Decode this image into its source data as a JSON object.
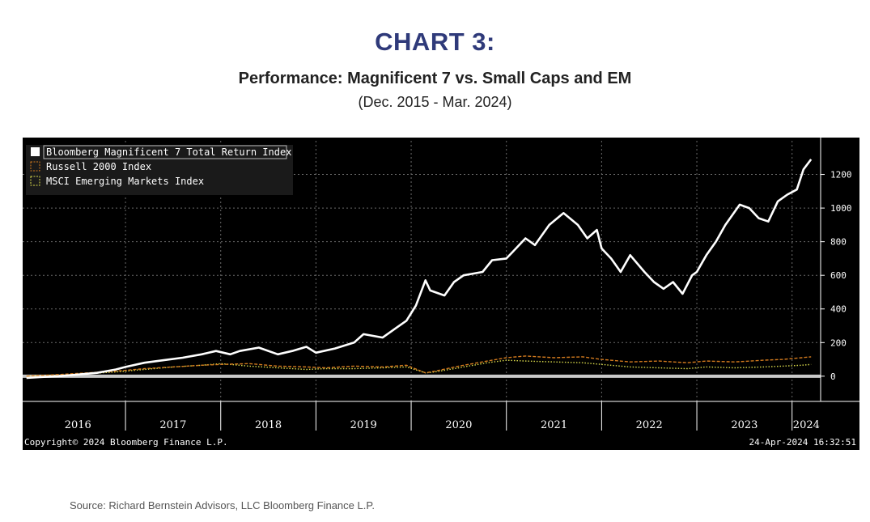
{
  "header": {
    "title": "CHART 3:",
    "subtitle": "Performance: Magnificent 7 vs. Small Caps and EM",
    "date_range": "(Dec. 2015 - Mar. 2024)"
  },
  "footer": {
    "copyright": "Copyright© 2024 Bloomberg Finance L.P.",
    "timestamp": "24-Apr-2024 16:32:51",
    "source": "Source: Richard Bernstein Advisors, LLC Bloomberg Finance L.P."
  },
  "chart_data": {
    "type": "line",
    "title": "Performance: Magnificent 7 vs. Small Caps and EM",
    "xlim": [
      2015.92,
      2024.3
    ],
    "ylim": [
      -150,
      1400
    ],
    "yticks": [
      0,
      200,
      400,
      600,
      800,
      1000,
      1200
    ],
    "xticks": [
      "2016",
      "2017",
      "2018",
      "2019",
      "2020",
      "2021",
      "2022",
      "2023",
      "2024"
    ],
    "grid": true,
    "legend_position": "top-left",
    "background": "#000000",
    "series": [
      {
        "name": "Bloomberg Magnificent 7 Total Return Index",
        "color": "#ffffff",
        "style": "solid",
        "x": [
          2015.96,
          2016.1,
          2016.3,
          2016.5,
          2016.7,
          2016.9,
          2017.0,
          2017.2,
          2017.4,
          2017.6,
          2017.8,
          2017.95,
          2018.1,
          2018.2,
          2018.4,
          2018.6,
          2018.75,
          2018.9,
          2019.0,
          2019.2,
          2019.4,
          2019.5,
          2019.7,
          2019.85,
          2019.95,
          2020.05,
          2020.15,
          2020.2,
          2020.35,
          2020.45,
          2020.55,
          2020.65,
          2020.75,
          2020.85,
          2021.0,
          2021.1,
          2021.2,
          2021.3,
          2021.45,
          2021.6,
          2021.75,
          2021.85,
          2021.95,
          2022.0,
          2022.1,
          2022.2,
          2022.3,
          2022.45,
          2022.55,
          2022.65,
          2022.75,
          2022.85,
          2022.95,
          2023.0,
          2023.1,
          2023.2,
          2023.3,
          2023.45,
          2023.55,
          2023.65,
          2023.75,
          2023.85,
          2023.95,
          2024.05,
          2024.12,
          2024.2
        ],
        "values": [
          -10,
          -5,
          0,
          10,
          20,
          40,
          55,
          80,
          95,
          110,
          130,
          150,
          130,
          150,
          170,
          130,
          150,
          175,
          140,
          165,
          200,
          250,
          230,
          290,
          330,
          420,
          570,
          510,
          480,
          560,
          600,
          610,
          620,
          690,
          700,
          760,
          820,
          780,
          900,
          970,
          900,
          820,
          870,
          760,
          700,
          620,
          720,
          620,
          560,
          520,
          560,
          490,
          600,
          620,
          720,
          800,
          900,
          1020,
          1000,
          940,
          920,
          1040,
          1080,
          1110,
          1230,
          1290
        ]
      },
      {
        "name": "Russell 2000 Index",
        "color": "#d27a1e",
        "style": "dashed",
        "x": [
          2015.96,
          2016.3,
          2016.6,
          2016.9,
          2017.2,
          2017.5,
          2017.8,
          2018.0,
          2018.3,
          2018.6,
          2018.9,
          2019.1,
          2019.4,
          2019.7,
          2019.95,
          2020.15,
          2020.25,
          2020.5,
          2020.8,
          2021.0,
          2021.2,
          2021.5,
          2021.8,
          2022.0,
          2022.3,
          2022.6,
          2022.9,
          2023.1,
          2023.4,
          2023.7,
          2023.9,
          2024.1,
          2024.2
        ],
        "values": [
          0,
          10,
          20,
          30,
          45,
          55,
          65,
          70,
          75,
          60,
          55,
          50,
          60,
          55,
          65,
          20,
          30,
          60,
          90,
          110,
          120,
          110,
          115,
          100,
          85,
          90,
          80,
          90,
          85,
          95,
          100,
          110,
          115
        ]
      },
      {
        "name": "MSCI Emerging Markets Index",
        "color": "#d8d84a",
        "style": "dotted",
        "x": [
          2015.96,
          2016.3,
          2016.6,
          2016.9,
          2017.2,
          2017.5,
          2017.8,
          2018.0,
          2018.3,
          2018.6,
          2018.9,
          2019.1,
          2019.4,
          2019.7,
          2019.95,
          2020.15,
          2020.25,
          2020.5,
          2020.8,
          2021.0,
          2021.2,
          2021.5,
          2021.8,
          2022.0,
          2022.3,
          2022.6,
          2022.9,
          2023.1,
          2023.4,
          2023.7,
          2023.9,
          2024.1,
          2024.2
        ],
        "values": [
          0,
          5,
          15,
          25,
          40,
          55,
          65,
          75,
          60,
          50,
          40,
          45,
          45,
          50,
          55,
          20,
          25,
          50,
          80,
          95,
          90,
          85,
          80,
          70,
          55,
          50,
          45,
          55,
          50,
          55,
          60,
          65,
          70
        ]
      }
    ]
  }
}
